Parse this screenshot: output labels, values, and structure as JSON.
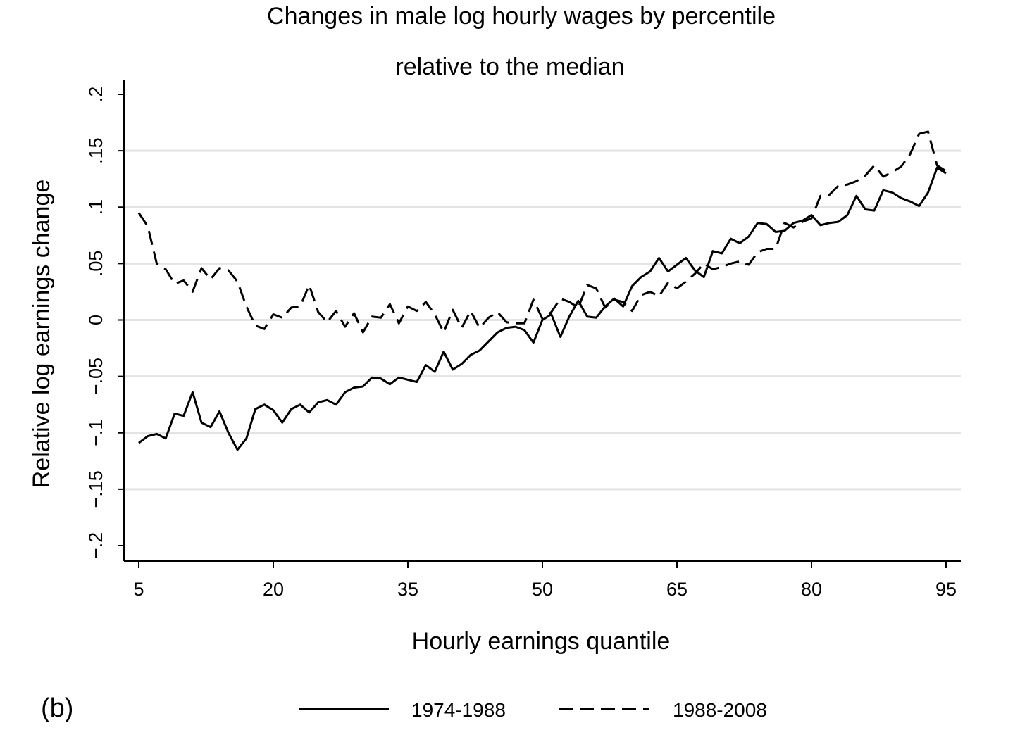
{
  "panel_label": "(b)",
  "chart_data": {
    "type": "line",
    "title": "Changes in male log hourly wages by percentile",
    "subtitle": "relative to the median",
    "xlabel": "Hourly earnings quantile",
    "ylabel": "Relative log earnings change",
    "xlim": [
      5,
      95
    ],
    "ylim": [
      -0.2,
      0.2
    ],
    "xticks": [
      5,
      20,
      35,
      50,
      65,
      80,
      95
    ],
    "xtick_labels": [
      "5",
      "20",
      "35",
      "50",
      "65",
      "80",
      "95"
    ],
    "yticks": [
      -0.2,
      -0.15,
      -0.1,
      -0.05,
      0,
      0.05,
      0.1,
      0.15,
      0.2
    ],
    "ytick_labels": [
      "−.2",
      "−.15",
      "−.1",
      "−.05",
      "0",
      ".05",
      ".1",
      ".15",
      ".2"
    ],
    "grid": "horizontal",
    "legend_position": "bottom",
    "series": [
      {
        "name": "1974-1988",
        "style": "solid",
        "color": "#000000",
        "x": [
          5,
          6,
          7,
          8,
          9,
          10,
          11,
          12,
          13,
          14,
          15,
          16,
          17,
          18,
          19,
          20,
          21,
          22,
          23,
          24,
          25,
          26,
          27,
          28,
          29,
          30,
          31,
          32,
          33,
          34,
          35,
          36,
          37,
          38,
          39,
          40,
          41,
          42,
          43,
          44,
          45,
          46,
          47,
          48,
          49,
          50,
          51,
          52,
          53,
          54,
          55,
          56,
          57,
          58,
          59,
          60,
          61,
          62,
          63,
          64,
          65,
          66,
          67,
          68,
          69,
          70,
          71,
          72,
          73,
          74,
          75,
          76,
          77,
          78,
          79,
          80,
          81,
          82,
          83,
          84,
          85,
          86,
          87,
          88,
          89,
          90,
          91,
          92,
          93,
          94,
          95
        ],
        "y": [
          -0.109,
          -0.103,
          -0.101,
          -0.105,
          -0.083,
          -0.085,
          -0.064,
          -0.091,
          -0.095,
          -0.081,
          -0.1,
          -0.115,
          -0.105,
          -0.079,
          -0.075,
          -0.08,
          -0.091,
          -0.079,
          -0.075,
          -0.082,
          -0.073,
          -0.071,
          -0.075,
          -0.064,
          -0.06,
          -0.059,
          -0.051,
          -0.052,
          -0.057,
          -0.051,
          -0.053,
          -0.055,
          -0.04,
          -0.046,
          -0.028,
          -0.044,
          -0.039,
          -0.031,
          -0.027,
          -0.019,
          -0.011,
          -0.007,
          -0.006,
          -0.009,
          -0.02,
          0.0,
          0.005,
          -0.015,
          0.003,
          0.017,
          0.003,
          0.002,
          0.012,
          0.019,
          0.012,
          0.03,
          0.038,
          0.043,
          0.055,
          0.043,
          0.049,
          0.055,
          0.044,
          0.038,
          0.061,
          0.059,
          0.072,
          0.068,
          0.074,
          0.086,
          0.085,
          0.078,
          0.079,
          0.086,
          0.088,
          0.093,
          0.084,
          0.086,
          0.087,
          0.093,
          0.11,
          0.098,
          0.097,
          0.115,
          0.113,
          0.108,
          0.105,
          0.101,
          0.113,
          0.135,
          0.13
        ]
      },
      {
        "name": "1988-2008",
        "style": "dashed",
        "color": "#000000",
        "x": [
          5,
          6,
          7,
          8,
          9,
          10,
          11,
          12,
          13,
          14,
          15,
          16,
          17,
          18,
          19,
          20,
          21,
          22,
          23,
          24,
          25,
          26,
          27,
          28,
          29,
          30,
          31,
          32,
          33,
          34,
          35,
          36,
          37,
          38,
          39,
          40,
          41,
          42,
          43,
          44,
          45,
          46,
          47,
          48,
          49,
          50,
          51,
          52,
          53,
          54,
          55,
          56,
          57,
          58,
          59,
          60,
          61,
          62,
          63,
          64,
          65,
          66,
          67,
          68,
          69,
          70,
          71,
          72,
          73,
          74,
          75,
          76,
          77,
          78,
          79,
          80,
          81,
          82,
          83,
          84,
          85,
          86,
          87,
          88,
          89,
          90,
          91,
          92,
          93,
          94,
          95
        ],
        "y": [
          0.095,
          0.083,
          0.05,
          0.045,
          0.032,
          0.035,
          0.025,
          0.046,
          0.036,
          0.046,
          0.044,
          0.034,
          0.012,
          -0.005,
          -0.008,
          0.005,
          0.002,
          0.011,
          0.012,
          0.031,
          0.007,
          -0.002,
          0.008,
          -0.006,
          0.006,
          -0.011,
          0.003,
          0.002,
          0.014,
          -0.003,
          0.012,
          0.008,
          0.016,
          0.005,
          -0.011,
          0.009,
          -0.007,
          0.008,
          -0.007,
          0.002,
          0.007,
          -0.002,
          -0.003,
          -0.003,
          0.018,
          0.001,
          0.007,
          0.019,
          0.016,
          0.011,
          0.031,
          0.028,
          0.011,
          0.018,
          0.016,
          0.008,
          0.022,
          0.025,
          0.021,
          0.033,
          0.028,
          0.034,
          0.041,
          0.05,
          0.045,
          0.047,
          0.05,
          0.052,
          0.049,
          0.06,
          0.063,
          0.063,
          0.086,
          0.082,
          0.087,
          0.09,
          0.11,
          0.111,
          0.119,
          0.12,
          0.123,
          0.128,
          0.137,
          0.127,
          0.131,
          0.136,
          0.147,
          0.165,
          0.167,
          0.137,
          0.132
        ]
      }
    ]
  }
}
